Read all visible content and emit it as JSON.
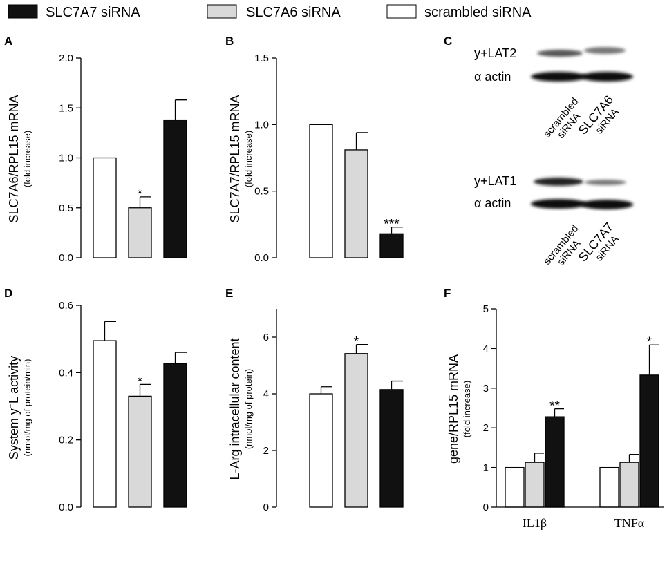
{
  "legend": {
    "items": [
      {
        "label": "SLC7A7 siRNA",
        "color": "#111111"
      },
      {
        "label": "SLC7A6 siRNA",
        "color": "#d9d9d9"
      },
      {
        "label": "scrambled siRNA",
        "color": "#ffffff"
      }
    ]
  },
  "colors": {
    "scrambled": "#ffffff",
    "slc7a6": "#d9d9d9",
    "slc7a7": "#111111",
    "stroke": "#000000"
  },
  "chart_data": [
    {
      "panel": "A",
      "type": "bar",
      "ylabel": "SLC7A6/RPL15 mRNA",
      "ysublabel": "(fold increase)",
      "ylim": [
        0,
        2.0
      ],
      "yticks": [
        "0.0",
        "0.5",
        "1.0",
        "1.5",
        "2.0"
      ],
      "series": [
        {
          "name": "scrambled siRNA",
          "values": [
            1.0
          ],
          "errors": [
            0
          ],
          "sig": [
            ""
          ]
        },
        {
          "name": "SLC7A6 siRNA",
          "values": [
            0.5
          ],
          "errors": [
            0.11
          ],
          "sig": [
            "*"
          ]
        },
        {
          "name": "SLC7A7 siRNA",
          "values": [
            1.38
          ],
          "errors": [
            0.2
          ],
          "sig": [
            ""
          ]
        }
      ]
    },
    {
      "panel": "B",
      "type": "bar",
      "ylabel": "SLC7A7/RPL15 mRNA",
      "ysublabel": "(fold increase)",
      "ylim": [
        0,
        1.5
      ],
      "yticks": [
        "0.0",
        "0.5",
        "1.0",
        "1.5"
      ],
      "series": [
        {
          "name": "scrambled siRNA",
          "values": [
            1.0
          ],
          "errors": [
            0
          ],
          "sig": [
            ""
          ]
        },
        {
          "name": "SLC7A6 siRNA",
          "values": [
            0.81
          ],
          "errors": [
            0.13
          ],
          "sig": [
            ""
          ]
        },
        {
          "name": "SLC7A7 siRNA",
          "values": [
            0.18
          ],
          "errors": [
            0.05
          ],
          "sig": [
            "***"
          ]
        }
      ]
    },
    {
      "panel": "D",
      "type": "bar",
      "ylabel_main": "System y",
      "ylabel_sup": "+",
      "ylabel_tail": "L activity",
      "ysublabel": "(nmol/mg of protein/min)",
      "ylim": [
        0,
        0.6
      ],
      "yticks": [
        "0.0",
        "0.2",
        "0.4",
        "0.6"
      ],
      "series": [
        {
          "name": "scrambled siRNA",
          "values": [
            0.495
          ],
          "errors": [
            0.057
          ],
          "sig": [
            ""
          ]
        },
        {
          "name": "SLC7A6 siRNA",
          "values": [
            0.33
          ],
          "errors": [
            0.035
          ],
          "sig": [
            "*"
          ]
        },
        {
          "name": "SLC7A7 siRNA",
          "values": [
            0.427
          ],
          "errors": [
            0.033
          ],
          "sig": [
            ""
          ]
        }
      ]
    },
    {
      "panel": "E",
      "type": "bar",
      "ylabel": "L-Arg intracellular content",
      "ysublabel": "(nmol/mg of protein)",
      "ylim": [
        0,
        7
      ],
      "yticks": [
        "0",
        "2",
        "4",
        "6"
      ],
      "series": [
        {
          "name": "scrambled siRNA",
          "values": [
            4.0
          ],
          "errors": [
            0.25
          ],
          "sig": [
            ""
          ]
        },
        {
          "name": "SLC7A6 siRNA",
          "values": [
            5.42
          ],
          "errors": [
            0.32
          ],
          "sig": [
            "*"
          ]
        },
        {
          "name": "SLC7A7 siRNA",
          "values": [
            4.15
          ],
          "errors": [
            0.3
          ],
          "sig": [
            ""
          ]
        }
      ]
    },
    {
      "panel": "F",
      "type": "bar",
      "ylabel": "gene/RPL15 mRNA",
      "ysublabel": "(fold increase)",
      "ylim": [
        0,
        5
      ],
      "yticks": [
        "0",
        "1",
        "2",
        "3",
        "4",
        "5"
      ],
      "categories": [
        "IL1β",
        "TNFα"
      ],
      "series": [
        {
          "name": "scrambled siRNA",
          "values": [
            1.0,
            1.0
          ],
          "errors": [
            0,
            0
          ],
          "sig": [
            "",
            ""
          ]
        },
        {
          "name": "SLC7A6 siRNA",
          "values": [
            1.13,
            1.13
          ],
          "errors": [
            0.23,
            0.2
          ],
          "sig": [
            "",
            ""
          ]
        },
        {
          "name": "SLC7A7 siRNA",
          "values": [
            2.28,
            3.33
          ],
          "errors": [
            0.2,
            0.76
          ],
          "sig": [
            "**",
            "*"
          ]
        }
      ]
    }
  ],
  "blot": {
    "panel": "C",
    "top": {
      "band1": "y+LAT2",
      "band2": "α actin",
      "lane1": [
        "scrambled",
        "siRNA"
      ],
      "lane2": [
        "SLC7A6",
        "siRNA"
      ]
    },
    "bottom": {
      "band1": "y+LAT1",
      "band2": "α actin",
      "lane1": [
        "scrambled",
        "siRNA"
      ],
      "lane2": [
        "SLC7A7",
        "siRNA"
      ]
    }
  }
}
